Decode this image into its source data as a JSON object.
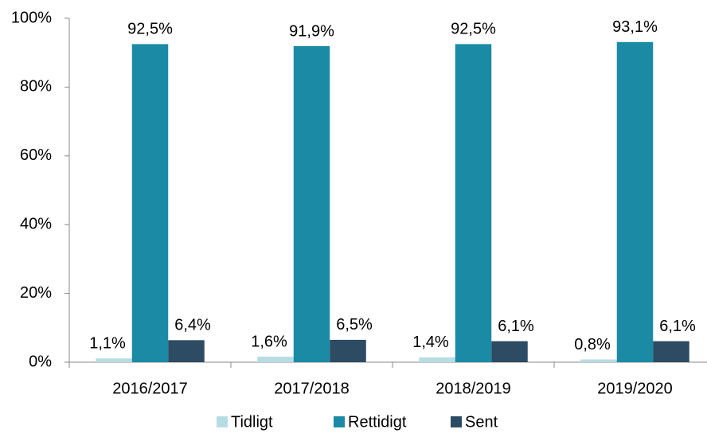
{
  "chart_data": {
    "type": "bar",
    "categories": [
      "2016/2017",
      "2017/2018",
      "2018/2019",
      "2019/2020"
    ],
    "series": [
      {
        "name": "Tidligt",
        "color": "#b7dde4",
        "values": [
          1.1,
          1.6,
          1.4,
          0.8
        ],
        "value_labels": [
          "1,1%",
          "1,6%",
          "1,4%",
          "0,8%"
        ]
      },
      {
        "name": "Rettidigt",
        "color": "#1b8aa5",
        "values": [
          92.5,
          91.9,
          92.5,
          93.1
        ],
        "value_labels": [
          "92,5%",
          "91,9%",
          "92,5%",
          "93,1%"
        ]
      },
      {
        "name": "Sent",
        "color": "#2d4b63",
        "values": [
          6.4,
          6.5,
          6.1,
          6.1
        ],
        "value_labels": [
          "6,4%",
          "6,5%",
          "6,1%",
          "6,1%"
        ]
      }
    ],
    "ylim": [
      0,
      100
    ],
    "yticks": [
      {
        "value": 0,
        "label": "0%"
      },
      {
        "value": 20,
        "label": "20%"
      },
      {
        "value": 40,
        "label": "40%"
      },
      {
        "value": 60,
        "label": "60%"
      },
      {
        "value": 80,
        "label": "80%"
      },
      {
        "value": 100,
        "label": "100%"
      }
    ],
    "grid": false,
    "legend": "bottom"
  }
}
